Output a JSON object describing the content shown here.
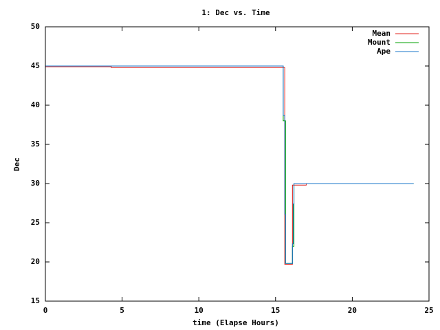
{
  "chart_data": {
    "type": "line",
    "title": "1: Dec vs. Time",
    "x_label": "time (Elapse Hours)",
    "y_label": "Dec",
    "xlim": [
      0,
      25
    ],
    "xticks": [
      0,
      5,
      10,
      15,
      20,
      25
    ],
    "ylim": [
      15,
      50
    ],
    "yticks": [
      15,
      20,
      25,
      30,
      35,
      40,
      45,
      50
    ],
    "legend": "top-right",
    "series": [
      {
        "name": "Mean",
        "color": "#e0201b",
        "x": [
          0,
          4.3,
          4.3,
          15.6,
          15.6,
          16.1,
          16.1,
          17,
          17,
          21.1
        ],
        "values": [
          44.9,
          44.9,
          44.8,
          44.8,
          19.7,
          19.7,
          29.8,
          29.8,
          30,
          30
        ]
      },
      {
        "name": "Mount",
        "color": "#00a000",
        "x": [
          0,
          15.5,
          15.5,
          15.65,
          15.65,
          16.1,
          16.1,
          16.2,
          16.2,
          24
        ],
        "values": [
          45,
          45,
          38,
          38,
          19.8,
          19.8,
          22,
          22,
          30,
          30
        ]
      },
      {
        "name": "Ape",
        "color": "#1a75c8",
        "x": [
          0,
          15.5,
          15.5,
          15.6,
          15.6,
          15.65,
          15.65,
          16.1,
          16.1,
          16.15,
          16.15,
          16.2,
          16.2,
          24
        ],
        "values": [
          45,
          45,
          38.7,
          38.7,
          26.1,
          26.1,
          19.8,
          19.8,
          22.3,
          22.3,
          27.4,
          27.4,
          30,
          30
        ]
      }
    ]
  }
}
